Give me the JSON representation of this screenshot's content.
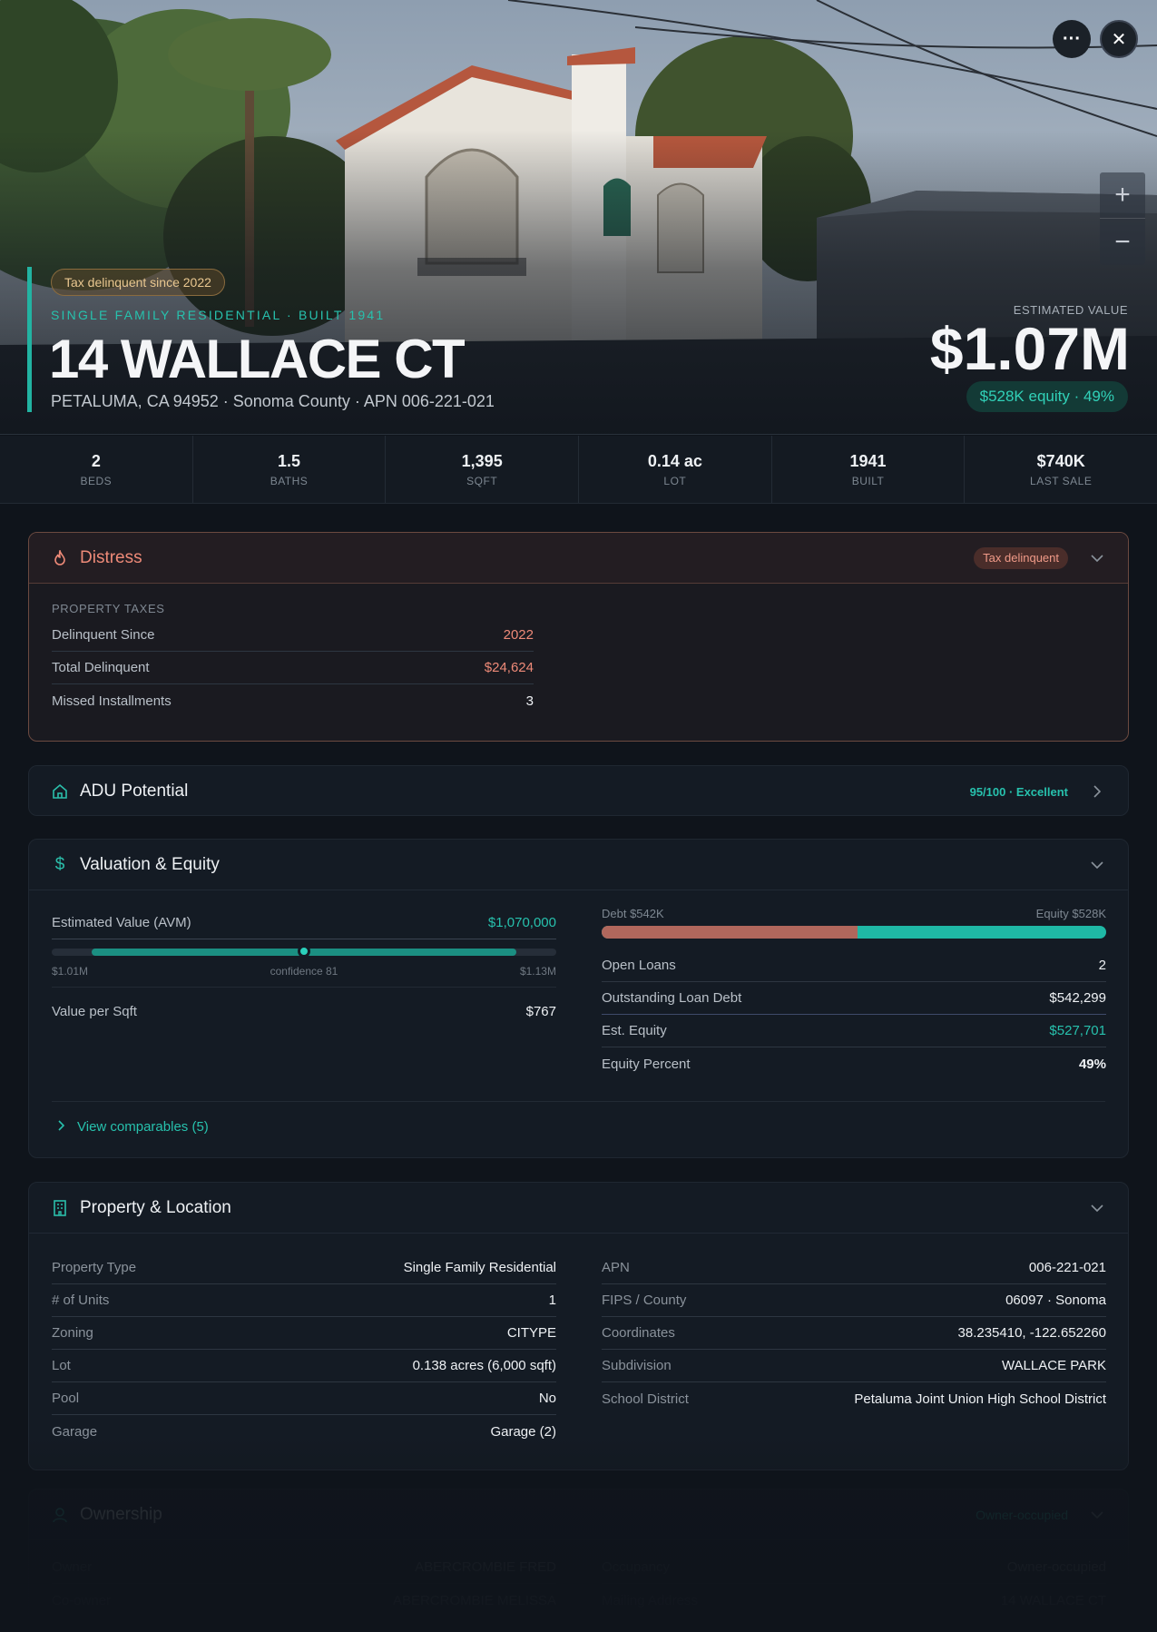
{
  "hero": {
    "tax_pill": "Tax delinquent since 2022",
    "property_subtype": "SINGLE FAMILY RESIDENTIAL · BUILT 1941",
    "address": "14 WALLACE CT",
    "subline": "PETALUMA, CA 94952 · Sonoma County · APN 006-221-021",
    "estimated_value_label": "ESTIMATED VALUE",
    "estimated_value": "$1.07M",
    "equity_pill": "$528K equity · 49%",
    "more_label": "···",
    "close_label": "✕",
    "zoom_in": "+",
    "zoom_out": "−"
  },
  "stats": [
    {
      "value": "2",
      "label": "BEDS"
    },
    {
      "value": "1.5",
      "label": "BATHS"
    },
    {
      "value": "1,395",
      "label": "SQFT"
    },
    {
      "value": "0.14 ac",
      "label": "LOT"
    },
    {
      "value": "1941",
      "label": "BUILT"
    },
    {
      "value": "$740K",
      "label": "LAST SALE"
    }
  ],
  "distress": {
    "title": "Distress",
    "badge": "Tax delinquent",
    "section_label": "PROPERTY TAXES",
    "rows": [
      {
        "k": "Delinquent Since",
        "v": "2022"
      },
      {
        "k": "Total Delinquent",
        "v": "$24,624"
      },
      {
        "k": "Missed Installments",
        "v": "3"
      }
    ]
  },
  "adu": {
    "title": "ADU Potential",
    "score": "95/100 · Excellent"
  },
  "valuation": {
    "title": "Valuation & Equity",
    "avm_label": "Estimated Value (AVM)",
    "avm_value": "$1,070,000",
    "avm_low": "$1.01M",
    "avm_confidence": "confidence 81",
    "avm_high": "$1.13M",
    "avm_confidence_fraction": 0.5,
    "value_per_sqft_label": "Value per Sqft",
    "value_per_sqft": "$767",
    "debt_label": "Debt $542K",
    "equity_label": "Equity $528K",
    "debt_fraction": 0.507,
    "rows": [
      {
        "k": "Open Loans",
        "v": "2"
      },
      {
        "k": "Outstanding Loan Debt",
        "v": "$542,299"
      },
      {
        "k": "Est. Equity",
        "v": "$527,701"
      },
      {
        "k": "Equity Percent",
        "v": "49%"
      }
    ],
    "view_comps": "View comparables (5)"
  },
  "property": {
    "title": "Property & Location",
    "left": [
      {
        "k": "Property Type",
        "v": "Single Family Residential"
      },
      {
        "k": "# of Units",
        "v": "1"
      },
      {
        "k": "Zoning",
        "v": "CITYPE"
      },
      {
        "k": "Lot",
        "v": "0.138 acres (6,000 sqft)"
      },
      {
        "k": "Pool",
        "v": "No"
      },
      {
        "k": "Garage",
        "v": "Garage (2)"
      }
    ],
    "right": [
      {
        "k": "APN",
        "v": "006-221-021"
      },
      {
        "k": "FIPS / County",
        "v": "06097 · Sonoma"
      },
      {
        "k": "Coordinates",
        "v": "38.235410, -122.652260"
      },
      {
        "k": "Subdivision",
        "v": "WALLACE PARK"
      },
      {
        "k": "School District",
        "v": "Petaluma Joint Union High School District"
      }
    ]
  },
  "ownership": {
    "title": "Ownership",
    "badge": "Owner-occupied",
    "left": [
      {
        "k": "Owner",
        "v": "ABERCROMBIE FRED"
      },
      {
        "k": "Co-owner",
        "v": "ABERCROMBIE MELISSA"
      }
    ],
    "right": [
      {
        "k": "Occupancy",
        "v": "Owner-occupied"
      },
      {
        "k": "Mailing Address",
        "v": "14 WALLACE CT"
      }
    ]
  },
  "colors": {
    "accent": "#27c1ad",
    "distress": "#ee8a78",
    "debt": "#b0675c",
    "equity": "#1fb8a5",
    "background": "#0f141b"
  }
}
